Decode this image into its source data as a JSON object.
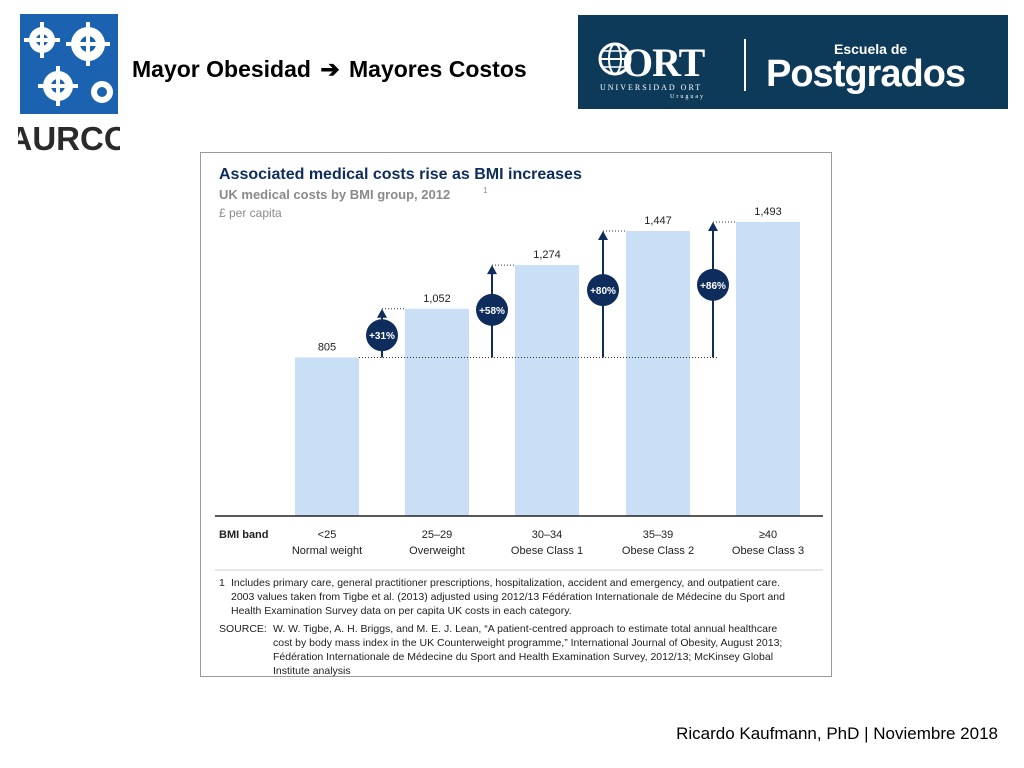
{
  "header": {
    "title_left": "Mayor Obesidad",
    "title_arrow": "➔",
    "title_right": "Mayores Costos",
    "aurco_logo_text": "AURCO",
    "ort": {
      "word": "ORT",
      "sub1": "UNIVERSIDAD ORT",
      "sub2": "Uruguay",
      "escuela": "Escuela de",
      "postgrados": "Postgrados"
    }
  },
  "chart_data": {
    "type": "bar",
    "title": "Associated medical costs rise as BMI increases",
    "subtitle": "UK medical costs by BMI group, 2012",
    "subtitle_sup": "1",
    "unit": "£ per capita",
    "axis_label": "BMI band",
    "categories": [
      "<25",
      "25–29",
      "30–34",
      "35–39",
      "≥40"
    ],
    "category_names": [
      "Normal weight",
      "Overweight",
      "Obese Class 1",
      "Obese Class 2",
      "Obese Class 3"
    ],
    "values": [
      805,
      1052,
      1274,
      1447,
      1493
    ],
    "value_labels": [
      "805",
      "1,052",
      "1,274",
      "1,447",
      "1,493"
    ],
    "increases": [
      null,
      "+31%",
      "+58%",
      "+80%",
      "+86%"
    ],
    "ylim": [
      0,
      1640
    ],
    "bar_color": "#c8dff5",
    "badge_color": "#0f2d5c",
    "title_color": "#0f2d5c",
    "subtitle_color": "#8a8a8a",
    "footnote_number": "1",
    "footnote_lines": [
      "Includes primary care, general practitioner prescriptions, hospitalization, accident and emergency, and outpatient care.",
      "2003 values taken from Tigbe et al. (2013) adjusted using 2012/13 Fédération Internationale de Médecine du Sport and",
      "Health Examination Survey data on per capita UK costs in each category."
    ],
    "source_label": "SOURCE:",
    "source_lines": [
      "W. W. Tigbe, A. H. Briggs, and M. E. J. Lean, “A patient-centred approach to estimate total annual healthcare",
      "cost by body mass index in the UK Counterweight programme,” International Journal of Obesity, August 2013;",
      "Fédération Internationale de Médecine du Sport and Health Examination Survey, 2012/13; McKinsey Global",
      "Institute analysis"
    ]
  },
  "footer": {
    "credit": "Ricardo Kaufmann, PhD   |   Noviembre 2018"
  }
}
